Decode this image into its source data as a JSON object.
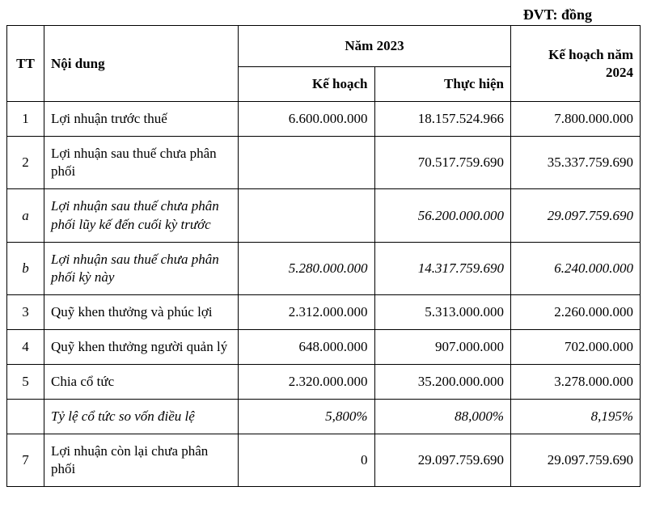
{
  "unit_label": "ĐVT: đồng",
  "header": {
    "tt": "TT",
    "nd": "Nội dung",
    "year": "Năm 2023",
    "plan_col": "Kế hoạch",
    "actual_col": "Thực hiện",
    "plan_2024": "Kế hoạch năm 2024"
  },
  "rows": [
    {
      "tt": "1",
      "nd": "Lợi nhuận trước thuế",
      "plan": "6.600.000.000",
      "actual": "18.157.524.966",
      "plan2024": "7.800.000.000",
      "italic": false
    },
    {
      "tt": "2",
      "nd": "Lợi nhuận sau thuế chưa phân phối",
      "plan": "",
      "actual": "70.517.759.690",
      "plan2024": "35.337.759.690",
      "italic": false
    },
    {
      "tt": "a",
      "nd": "Lợi nhuận sau thuế chưa phân phối lũy kế đến cuối kỳ trước",
      "plan": "",
      "actual": "56.200.000.000",
      "plan2024": "29.097.759.690",
      "italic": true
    },
    {
      "tt": "b",
      "nd": "Lợi nhuận sau thuế chưa phân phối kỳ này",
      "plan": "5.280.000.000",
      "actual": "14.317.759.690",
      "plan2024": "6.240.000.000",
      "italic": true
    },
    {
      "tt": "3",
      "nd": "Quỹ khen thưởng và phúc lợi",
      "plan": "2.312.000.000",
      "actual": "5.313.000.000",
      "plan2024": "2.260.000.000",
      "italic": false
    },
    {
      "tt": "4",
      "nd": "Quỹ khen thưởng người quản lý",
      "plan": "648.000.000",
      "actual": "907.000.000",
      "plan2024": "702.000.000",
      "italic": false
    },
    {
      "tt": "5",
      "nd": "Chia cổ tức",
      "plan": "2.320.000.000",
      "actual": "35.200.000.000",
      "plan2024": "3.278.000.000",
      "italic": false
    },
    {
      "tt": "",
      "nd": "Tỷ lệ cổ tức so vốn điều lệ",
      "plan": "5,800%",
      "actual": "88,000%",
      "plan2024": "8,195%",
      "italic": true
    },
    {
      "tt": "7",
      "nd": "Lợi nhuận còn lại chưa phân phối",
      "plan": "0",
      "actual": "29.097.759.690",
      "plan2024": "29.097.759.690",
      "italic": false
    }
  ],
  "styles": {
    "font_family": "Times New Roman",
    "cell_fontsize": 17,
    "header_fontsize": 17,
    "unit_fontsize": 18,
    "border_color": "#000000",
    "border_width": 1.5,
    "background_color": "#ffffff",
    "text_color": "#000000",
    "col_widths": {
      "tt": 46,
      "nd": 240,
      "num": 160
    }
  }
}
